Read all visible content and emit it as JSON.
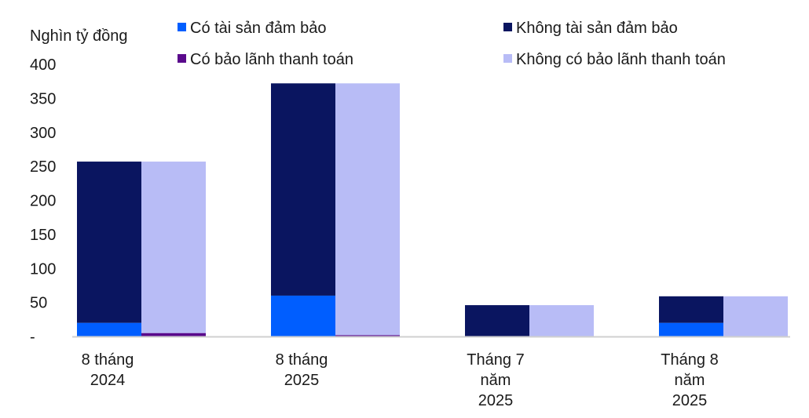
{
  "chart_data": {
    "type": "bar",
    "stacked": true,
    "ylabel": "Nghìn tỷ đồng",
    "ylim": [
      0,
      400
    ],
    "yticks": [
      0,
      50,
      100,
      150,
      200,
      250,
      300,
      350,
      400
    ],
    "ytick_labels": [
      "-",
      "50",
      "100",
      "150",
      "200",
      "250",
      "300",
      "350",
      "400"
    ],
    "grid": false,
    "legend_position": "top",
    "categories": [
      [
        "8 tháng",
        "2024"
      ],
      [
        "8 tháng",
        "2025"
      ],
      [
        "Tháng 7",
        "năm",
        "2025"
      ],
      [
        "Tháng 8",
        "năm",
        "2025"
      ]
    ],
    "stacks": [
      {
        "series": [
          {
            "name": "Có tài sản đảm bảo",
            "color": "#005eff",
            "values": [
              20,
              60,
              0,
              20
            ]
          },
          {
            "name": "Không tài sản đảm bảo",
            "color": "#0a1560",
            "values": [
              237,
              312,
              46,
              39
            ]
          }
        ]
      },
      {
        "series": [
          {
            "name": "Có bảo lãnh thanh toán",
            "color": "#5a0a8c",
            "values": [
              5,
              2,
              0,
              0
            ]
          },
          {
            "name": "Không có bảo lãnh thanh toán",
            "color": "#b8bcf6",
            "values": [
              252,
              370,
              46,
              59
            ]
          }
        ]
      }
    ],
    "legend": [
      {
        "label": "Có tài sản đảm bảo",
        "color": "#005eff"
      },
      {
        "label": "Không tài sản đảm bảo",
        "color": "#0a1560"
      },
      {
        "label": "Có bảo lãnh thanh toán",
        "color": "#5a0a8c"
      },
      {
        "label": "Không có bảo lãnh thanh toán",
        "color": "#b8bcf6"
      }
    ]
  }
}
